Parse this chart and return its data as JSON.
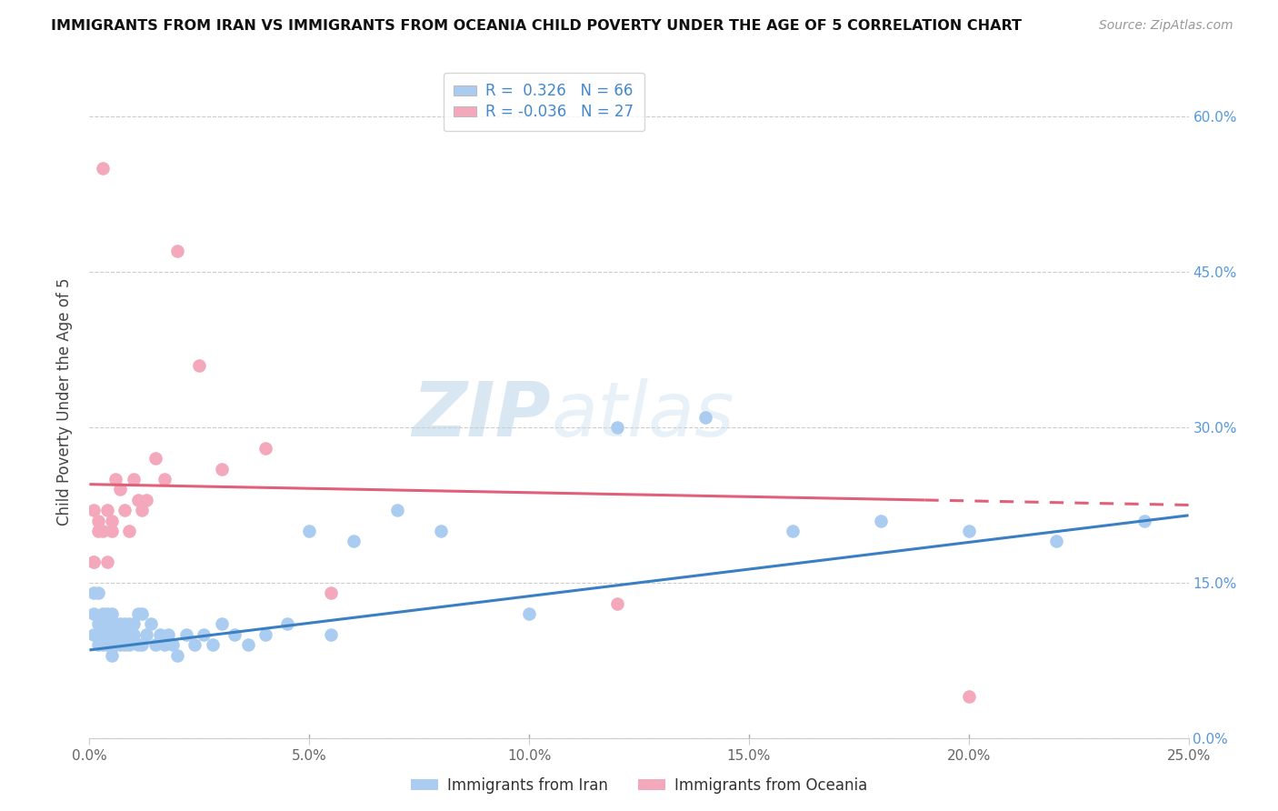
{
  "title": "IMMIGRANTS FROM IRAN VS IMMIGRANTS FROM OCEANIA CHILD POVERTY UNDER THE AGE OF 5 CORRELATION CHART",
  "source": "Source: ZipAtlas.com",
  "ylabel": "Child Poverty Under the Age of 5",
  "legend_label1": "Immigrants from Iran",
  "legend_label2": "Immigrants from Oceania",
  "r1": 0.326,
  "n1": 66,
  "r2": -0.036,
  "n2": 27,
  "xlim": [
    0.0,
    0.25
  ],
  "ylim": [
    0.0,
    0.65
  ],
  "color_iran": "#aaccf0",
  "color_oceania": "#f4a8bc",
  "line_iran_color": "#3a7fc1",
  "line_oceania_color": "#e0607a",
  "xticks": [
    0.0,
    0.05,
    0.1,
    0.15,
    0.2,
    0.25
  ],
  "yticks": [
    0.0,
    0.15,
    0.3,
    0.45,
    0.6
  ],
  "iran_x": [
    0.001,
    0.001,
    0.001,
    0.001,
    0.002,
    0.002,
    0.002,
    0.002,
    0.003,
    0.003,
    0.003,
    0.003,
    0.004,
    0.004,
    0.004,
    0.005,
    0.005,
    0.005,
    0.005,
    0.006,
    0.006,
    0.006,
    0.007,
    0.007,
    0.007,
    0.008,
    0.008,
    0.008,
    0.009,
    0.009,
    0.01,
    0.01,
    0.011,
    0.011,
    0.012,
    0.012,
    0.013,
    0.014,
    0.015,
    0.016,
    0.017,
    0.018,
    0.019,
    0.02,
    0.022,
    0.024,
    0.026,
    0.028,
    0.03,
    0.033,
    0.036,
    0.04,
    0.045,
    0.05,
    0.055,
    0.06,
    0.07,
    0.08,
    0.1,
    0.12,
    0.14,
    0.16,
    0.18,
    0.2,
    0.22,
    0.24
  ],
  "iran_y": [
    0.17,
    0.14,
    0.12,
    0.1,
    0.14,
    0.11,
    0.1,
    0.09,
    0.12,
    0.11,
    0.1,
    0.09,
    0.12,
    0.1,
    0.09,
    0.12,
    0.11,
    0.1,
    0.08,
    0.11,
    0.1,
    0.09,
    0.11,
    0.1,
    0.09,
    0.11,
    0.1,
    0.09,
    0.11,
    0.09,
    0.11,
    0.1,
    0.12,
    0.09,
    0.12,
    0.09,
    0.1,
    0.11,
    0.09,
    0.1,
    0.09,
    0.1,
    0.09,
    0.08,
    0.1,
    0.09,
    0.1,
    0.09,
    0.11,
    0.1,
    0.09,
    0.1,
    0.11,
    0.2,
    0.1,
    0.19,
    0.22,
    0.2,
    0.12,
    0.3,
    0.31,
    0.2,
    0.21,
    0.2,
    0.19,
    0.21
  ],
  "oceania_x": [
    0.001,
    0.001,
    0.002,
    0.002,
    0.003,
    0.003,
    0.004,
    0.004,
    0.005,
    0.005,
    0.006,
    0.007,
    0.008,
    0.009,
    0.01,
    0.011,
    0.012,
    0.013,
    0.015,
    0.017,
    0.02,
    0.025,
    0.03,
    0.04,
    0.055,
    0.12,
    0.2
  ],
  "oceania_y": [
    0.22,
    0.17,
    0.2,
    0.21,
    0.55,
    0.2,
    0.17,
    0.22,
    0.2,
    0.21,
    0.25,
    0.24,
    0.22,
    0.2,
    0.25,
    0.23,
    0.22,
    0.23,
    0.27,
    0.25,
    0.47,
    0.36,
    0.26,
    0.28,
    0.14,
    0.13,
    0.04
  ],
  "iran_trendline_start_y": 0.085,
  "iran_trendline_end_y": 0.215,
  "oceania_trendline_start_y": 0.245,
  "oceania_trendline_end_y": 0.225
}
